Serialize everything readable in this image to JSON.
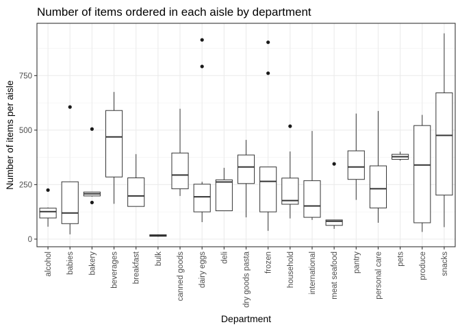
{
  "chart_data": {
    "type": "boxplot",
    "title": "Number of items ordered in each aisle by department",
    "xlabel": "Department",
    "ylabel": "Number of items per aisle",
    "ylim": [
      -35,
      990
    ],
    "y_ticks": [
      0,
      250,
      500,
      750
    ],
    "y_tick_labels": [
      "0",
      "250",
      "500",
      "750"
    ],
    "grid": true,
    "theme": "bw",
    "categories": [
      "alcohol",
      "babies",
      "bakery",
      "beverages",
      "breakfast",
      "bulk",
      "canned goods",
      "dairy eggs",
      "deli",
      "dry goods pasta",
      "frozen",
      "household",
      "international",
      "meat seafood",
      "pantry",
      "personal care",
      "pets",
      "produce",
      "snacks"
    ],
    "boxes": [
      {
        "category": "alcohol",
        "min": 57,
        "q1": 97,
        "median": 126,
        "q3": 142,
        "max": 145,
        "outliers": [
          225
        ]
      },
      {
        "category": "babies",
        "min": 22,
        "q1": 71,
        "median": 120,
        "q3": 263,
        "max": 263,
        "outliers": [
          606
        ]
      },
      {
        "category": "bakery",
        "min": 195,
        "q1": 198,
        "median": 208,
        "q3": 216,
        "max": 216,
        "outliers": [
          505,
          168
        ]
      },
      {
        "category": "beverages",
        "min": 162,
        "q1": 285,
        "median": 469,
        "q3": 590,
        "max": 675,
        "outliers": []
      },
      {
        "category": "breakfast",
        "min": 150,
        "q1": 150,
        "median": 198,
        "q3": 281,
        "max": 390,
        "outliers": []
      },
      {
        "category": "bulk",
        "min": 11,
        "q1": 13,
        "median": 16,
        "q3": 20,
        "max": 22,
        "outliers": []
      },
      {
        "category": "canned goods",
        "min": 198,
        "q1": 231,
        "median": 294,
        "q3": 395,
        "max": 598,
        "outliers": []
      },
      {
        "category": "dairy eggs",
        "min": 78,
        "q1": 125,
        "median": 194,
        "q3": 252,
        "max": 263,
        "outliers": [
          914,
          792
        ]
      },
      {
        "category": "deli",
        "min": 130,
        "q1": 130,
        "median": 262,
        "q3": 272,
        "max": 327,
        "outliers": []
      },
      {
        "category": "dry goods pasta",
        "min": 100,
        "q1": 255,
        "median": 331,
        "q3": 386,
        "max": 455,
        "outliers": []
      },
      {
        "category": "frozen",
        "min": 38,
        "q1": 125,
        "median": 265,
        "q3": 331,
        "max": 331,
        "outliers": [
          903,
          761
        ]
      },
      {
        "category": "household",
        "min": 95,
        "q1": 160,
        "median": 177,
        "q3": 280,
        "max": 402,
        "outliers": [
          518
        ]
      },
      {
        "category": "international",
        "min": 88,
        "q1": 100,
        "median": 152,
        "q3": 268,
        "max": 496,
        "outliers": []
      },
      {
        "category": "meat seafood",
        "min": 47,
        "q1": 63,
        "median": 82,
        "q3": 88,
        "max": 88,
        "outliers": [
          345
        ]
      },
      {
        "category": "pantry",
        "min": 180,
        "q1": 274,
        "median": 331,
        "q3": 405,
        "max": 576,
        "outliers": []
      },
      {
        "category": "personal care",
        "min": 75,
        "q1": 143,
        "median": 231,
        "q3": 336,
        "max": 588,
        "outliers": []
      },
      {
        "category": "pets",
        "min": 360,
        "q1": 366,
        "median": 378,
        "q3": 389,
        "max": 401,
        "outliers": []
      },
      {
        "category": "produce",
        "min": 33,
        "q1": 75,
        "median": 340,
        "q3": 521,
        "max": 570,
        "outliers": []
      },
      {
        "category": "snacks",
        "min": 55,
        "q1": 202,
        "median": 476,
        "q3": 671,
        "max": 944,
        "outliers": []
      }
    ]
  }
}
